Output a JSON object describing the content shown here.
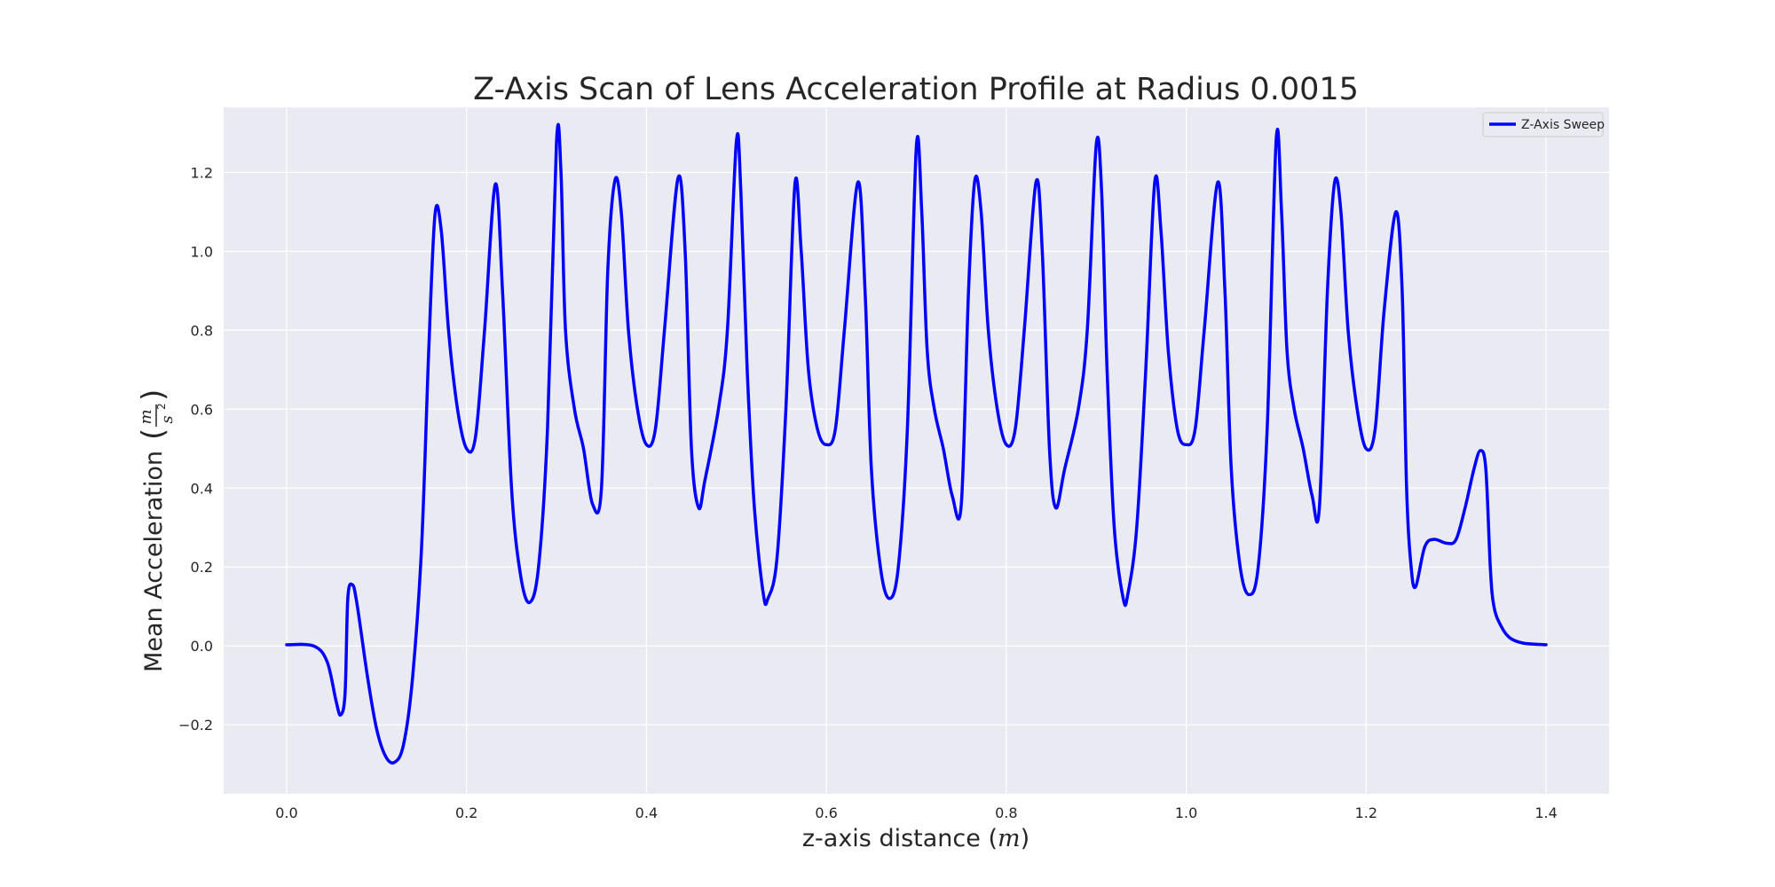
{
  "chart_data": {
    "type": "line",
    "title": "Z-Axis Scan of Lens Acceleration Profile at Radius 0.0015",
    "xlabel": "z-axis distance",
    "xlabel_unit": "m",
    "ylabel": "Mean Acceleration",
    "ylabel_unit_num": "m",
    "ylabel_unit_den": "s",
    "ylabel_unit_exp": "2",
    "xlim": [
      -0.07,
      1.47
    ],
    "ylim": [
      -0.375,
      1.365
    ],
    "xticks": [
      0.0,
      0.2,
      0.4,
      0.6,
      0.8,
      1.0,
      1.2,
      1.4
    ],
    "xtick_labels": [
      "0.0",
      "0.2",
      "0.4",
      "0.6",
      "0.8",
      "1.0",
      "1.2",
      "1.4"
    ],
    "yticks": [
      -0.2,
      0.0,
      0.2,
      0.4,
      0.6,
      0.8,
      1.0,
      1.2
    ],
    "ytick_labels": [
      "−0.2",
      "0.0",
      "0.2",
      "0.4",
      "0.6",
      "0.8",
      "1.0",
      "1.2"
    ],
    "grid": true,
    "legend_position": "top-right",
    "colors": {
      "line": "#0000ff",
      "plot_bg": "#eaeaf2",
      "grid": "#ffffff"
    },
    "series": [
      {
        "name": "Z-Axis Sweep",
        "points": [
          [
            0.0,
            0.003
          ],
          [
            0.03,
            0.0
          ],
          [
            0.045,
            -0.04
          ],
          [
            0.055,
            -0.14
          ],
          [
            0.06,
            -0.175
          ],
          [
            0.065,
            -0.12
          ],
          [
            0.068,
            0.12
          ],
          [
            0.073,
            0.155
          ],
          [
            0.078,
            0.11
          ],
          [
            0.09,
            -0.08
          ],
          [
            0.1,
            -0.21
          ],
          [
            0.11,
            -0.28
          ],
          [
            0.12,
            -0.295
          ],
          [
            0.13,
            -0.25
          ],
          [
            0.14,
            -0.08
          ],
          [
            0.15,
            0.25
          ],
          [
            0.158,
            0.75
          ],
          [
            0.165,
            1.095
          ],
          [
            0.172,
            1.05
          ],
          [
            0.18,
            0.8
          ],
          [
            0.19,
            0.6
          ],
          [
            0.2,
            0.5
          ],
          [
            0.21,
            0.53
          ],
          [
            0.22,
            0.8
          ],
          [
            0.232,
            1.17
          ],
          [
            0.24,
            0.9
          ],
          [
            0.25,
            0.4
          ],
          [
            0.26,
            0.18
          ],
          [
            0.27,
            0.11
          ],
          [
            0.28,
            0.2
          ],
          [
            0.29,
            0.55
          ],
          [
            0.3,
            1.275
          ],
          [
            0.305,
            1.2
          ],
          [
            0.31,
            0.8
          ],
          [
            0.32,
            0.6
          ],
          [
            0.33,
            0.5
          ],
          [
            0.34,
            0.36
          ],
          [
            0.35,
            0.4
          ],
          [
            0.357,
            0.95
          ],
          [
            0.365,
            1.18
          ],
          [
            0.372,
            1.1
          ],
          [
            0.38,
            0.8
          ],
          [
            0.39,
            0.6
          ],
          [
            0.4,
            0.51
          ],
          [
            0.41,
            0.55
          ],
          [
            0.42,
            0.8
          ],
          [
            0.435,
            1.185
          ],
          [
            0.443,
            1.0
          ],
          [
            0.45,
            0.5
          ],
          [
            0.458,
            0.35
          ],
          [
            0.465,
            0.42
          ],
          [
            0.48,
            0.6
          ],
          [
            0.49,
            0.8
          ],
          [
            0.5,
            1.28
          ],
          [
            0.505,
            1.15
          ],
          [
            0.512,
            0.7
          ],
          [
            0.52,
            0.35
          ],
          [
            0.53,
            0.13
          ],
          [
            0.535,
            0.12
          ],
          [
            0.545,
            0.22
          ],
          [
            0.555,
            0.6
          ],
          [
            0.565,
            1.17
          ],
          [
            0.572,
            1.0
          ],
          [
            0.58,
            0.7
          ],
          [
            0.59,
            0.55
          ],
          [
            0.6,
            0.51
          ],
          [
            0.61,
            0.55
          ],
          [
            0.62,
            0.8
          ],
          [
            0.635,
            1.175
          ],
          [
            0.643,
            0.9
          ],
          [
            0.65,
            0.45
          ],
          [
            0.66,
            0.2
          ],
          [
            0.67,
            0.12
          ],
          [
            0.68,
            0.2
          ],
          [
            0.69,
            0.55
          ],
          [
            0.7,
            1.265
          ],
          [
            0.706,
            1.1
          ],
          [
            0.712,
            0.75
          ],
          [
            0.72,
            0.6
          ],
          [
            0.73,
            0.5
          ],
          [
            0.74,
            0.38
          ],
          [
            0.75,
            0.36
          ],
          [
            0.758,
            0.9
          ],
          [
            0.765,
            1.18
          ],
          [
            0.772,
            1.1
          ],
          [
            0.78,
            0.8
          ],
          [
            0.79,
            0.6
          ],
          [
            0.8,
            0.51
          ],
          [
            0.81,
            0.55
          ],
          [
            0.82,
            0.8
          ],
          [
            0.833,
            1.175
          ],
          [
            0.84,
            1.0
          ],
          [
            0.848,
            0.5
          ],
          [
            0.855,
            0.35
          ],
          [
            0.865,
            0.45
          ],
          [
            0.88,
            0.6
          ],
          [
            0.89,
            0.8
          ],
          [
            0.9,
            1.27
          ],
          [
            0.906,
            1.15
          ],
          [
            0.912,
            0.7
          ],
          [
            0.92,
            0.3
          ],
          [
            0.93,
            0.12
          ],
          [
            0.935,
            0.13
          ],
          [
            0.945,
            0.3
          ],
          [
            0.955,
            0.7
          ],
          [
            0.965,
            1.175
          ],
          [
            0.972,
            1.05
          ],
          [
            0.98,
            0.75
          ],
          [
            0.99,
            0.55
          ],
          [
            1.0,
            0.51
          ],
          [
            1.01,
            0.55
          ],
          [
            1.02,
            0.8
          ],
          [
            1.035,
            1.175
          ],
          [
            1.043,
            0.9
          ],
          [
            1.05,
            0.45
          ],
          [
            1.06,
            0.2
          ],
          [
            1.07,
            0.13
          ],
          [
            1.08,
            0.2
          ],
          [
            1.09,
            0.55
          ],
          [
            1.1,
            1.285
          ],
          [
            1.106,
            1.1
          ],
          [
            1.112,
            0.75
          ],
          [
            1.12,
            0.6
          ],
          [
            1.13,
            0.5
          ],
          [
            1.14,
            0.38
          ],
          [
            1.148,
            0.35
          ],
          [
            1.157,
            0.9
          ],
          [
            1.165,
            1.175
          ],
          [
            1.172,
            1.1
          ],
          [
            1.18,
            0.8
          ],
          [
            1.19,
            0.6
          ],
          [
            1.2,
            0.5
          ],
          [
            1.21,
            0.55
          ],
          [
            1.22,
            0.85
          ],
          [
            1.233,
            1.1
          ],
          [
            1.24,
            0.9
          ],
          [
            1.245,
            0.4
          ],
          [
            1.25,
            0.2
          ],
          [
            1.255,
            0.15
          ],
          [
            1.265,
            0.25
          ],
          [
            1.275,
            0.27
          ],
          [
            1.29,
            0.26
          ],
          [
            1.3,
            0.27
          ],
          [
            1.31,
            0.35
          ],
          [
            1.32,
            0.45
          ],
          [
            1.327,
            0.495
          ],
          [
            1.333,
            0.45
          ],
          [
            1.338,
            0.2
          ],
          [
            1.342,
            0.1
          ],
          [
            1.35,
            0.05
          ],
          [
            1.36,
            0.02
          ],
          [
            1.375,
            0.007
          ],
          [
            1.4,
            0.003
          ]
        ]
      }
    ]
  }
}
